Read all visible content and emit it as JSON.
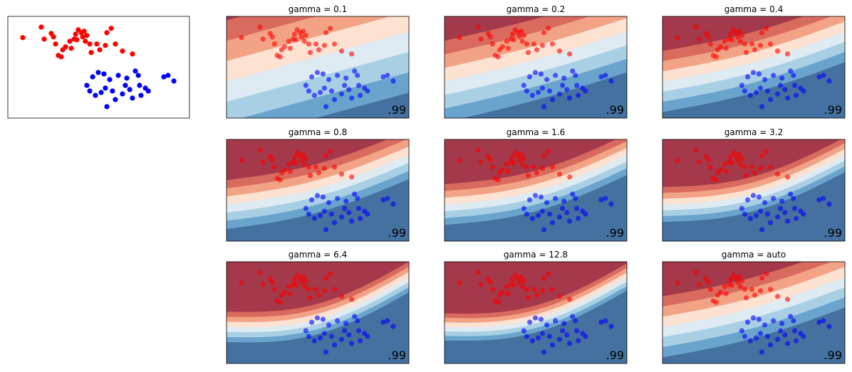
{
  "chart_data": [
    {
      "type": "scatter",
      "xlim": [
        0,
        10
      ],
      "ylim": [
        0,
        5.6
      ],
      "series": [
        {
          "color": "red",
          "x": [
            0.82,
            1.84,
            2.0,
            2.39,
            2.51,
            2.63,
            2.78,
            2.94,
            3.02,
            3.18,
            3.41,
            3.49,
            3.65,
            3.73,
            3.8,
            3.88,
            4.04,
            4.12,
            4.2,
            4.27,
            4.35,
            4.51,
            4.59,
            4.9,
            5.06,
            5.37,
            5.45,
            5.69,
            5.92,
            6.31,
            6.86
          ],
          "y": [
            4.43,
            5.01,
            4.35,
            4.66,
            4.47,
            4.08,
            3.45,
            3.37,
            3.76,
            3.92,
            4.23,
            3.84,
            4.35,
            4.62,
            4.31,
            4.86,
            4.7,
            4.47,
            4.78,
            4.23,
            4.55,
            4.08,
            3.61,
            4.08,
            3.76,
            4.0,
            4.7,
            4.94,
            4.08,
            3.69,
            3.53
          ]
        },
        {
          "color": "blue",
          "x": [
            4.35,
            4.51,
            4.67,
            4.82,
            4.98,
            5.14,
            5.29,
            5.37,
            5.45,
            5.61,
            5.76,
            5.92,
            6.08,
            6.31,
            6.47,
            6.55,
            6.71,
            6.86,
            7.02,
            7.18,
            7.25,
            7.33,
            7.57,
            7.73,
            8.59,
            8.82,
            9.14
          ],
          "y": [
            1.8,
            1.49,
            2.27,
            1.25,
            2.51,
            1.41,
            2.43,
            1.65,
            0.63,
            2.12,
            1.49,
            1.02,
            2.35,
            1.33,
            1.8,
            2.2,
            1.57,
            1.1,
            2.59,
            2.35,
            1.8,
            1.25,
            1.65,
            1.49,
            2.27,
            2.35,
            2.04
          ]
        }
      ]
    },
    {
      "type": "contour",
      "title": "gamma = 0.1",
      "annotation": ".99"
    },
    {
      "type": "contour",
      "title": "gamma = 0.2",
      "annotation": ".99"
    },
    {
      "type": "contour",
      "title": "gamma = 0.4",
      "annotation": ".99"
    },
    {
      "type": "contour",
      "title": "gamma = 0.8",
      "annotation": ".99"
    },
    {
      "type": "contour",
      "title": "gamma = 1.6",
      "annotation": ".99"
    },
    {
      "type": "contour",
      "title": "gamma = 3.2",
      "annotation": ".99"
    },
    {
      "type": "contour",
      "title": "gamma = 6.4",
      "annotation": ".99"
    },
    {
      "type": "contour",
      "title": "gamma = 12.8",
      "annotation": ".99"
    },
    {
      "type": "contour",
      "title": "gamma = auto",
      "annotation": ".99"
    }
  ]
}
